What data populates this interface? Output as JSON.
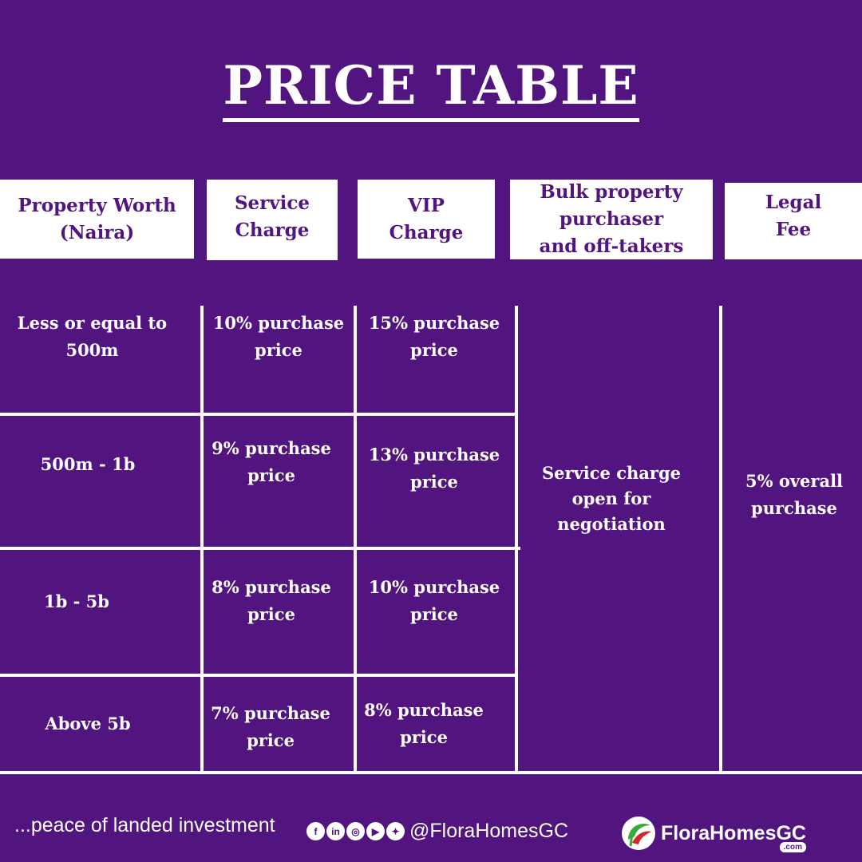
{
  "title": "PRICE TABLE",
  "headers": [
    "Property Worth\n(Naira)",
    "Service\nCharge",
    "VIP\nCharge",
    "Bulk property\npurchaser\nand off-takers",
    "Legal\nFee"
  ],
  "rows": [
    {
      "worth": "Less or equal to\n500m",
      "service": "10% purchase\nprice",
      "vip": "15% purchase\nprice"
    },
    {
      "worth": "500m - 1b",
      "service": "9% purchase\nprice",
      "vip": "13% purchase\nprice"
    },
    {
      "worth": "1b - 5b",
      "service": "8% purchase\nprice",
      "vip": "10% purchase\nprice"
    },
    {
      "worth": "Above 5b",
      "service": "7% purchase\nprice",
      "vip": "8% purchase\nprice"
    }
  ],
  "bulk_note": "Service charge\nopen for\nnegotiation",
  "legal_note": "5% overall\npurchase",
  "footer": {
    "tagline": "...peace of landed investment",
    "social_icons": [
      "facebook-icon",
      "linkedin-icon",
      "instagram-icon",
      "youtube-icon",
      "twitter-icon"
    ],
    "social_glyphs": [
      "f",
      "in",
      "◎",
      "▶",
      "✦"
    ],
    "handle": "@FloraHomesGC",
    "logo_name": "FloraHomesGC",
    "logo_suffix": ".com"
  },
  "colors": {
    "background": "#52147e",
    "foreground": "#ffffff",
    "logo_green": "#3aa935",
    "logo_red": "#d7252b"
  }
}
